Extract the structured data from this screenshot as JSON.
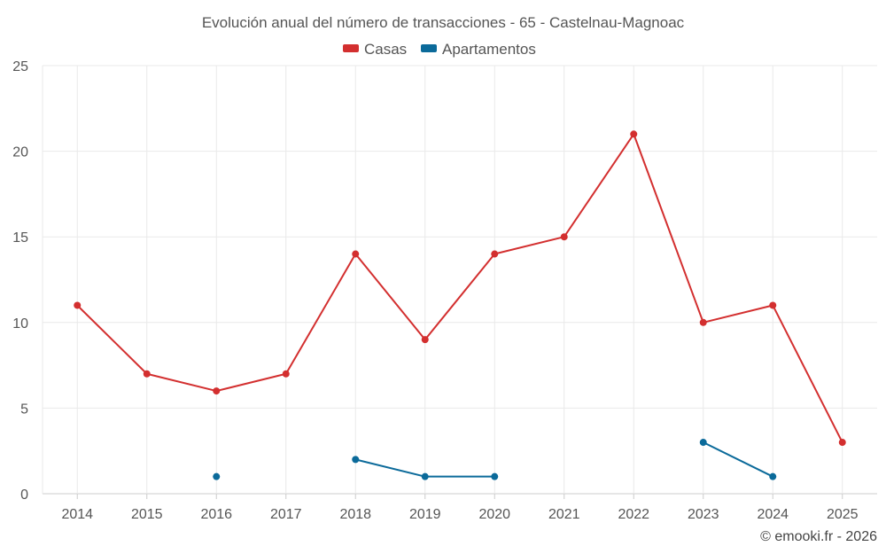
{
  "chart_data": {
    "type": "line",
    "title": "Evolución anual del número de transacciones - 65 - Castelnau-Magnoac",
    "categories": [
      "2014",
      "2015",
      "2016",
      "2017",
      "2018",
      "2019",
      "2020",
      "2021",
      "2022",
      "2023",
      "2024",
      "2025"
    ],
    "ylim": [
      0,
      25
    ],
    "yticks": [
      0,
      5,
      10,
      15,
      20,
      25
    ],
    "grid": true,
    "legend": "top-center",
    "series": [
      {
        "name": "Casas",
        "color": "#d32f2f",
        "values": [
          11,
          7,
          6,
          7,
          14,
          9,
          14,
          15,
          21,
          10,
          11,
          3
        ]
      },
      {
        "name": "Apartamentos",
        "color": "#0b6a9a",
        "values": [
          null,
          null,
          1,
          null,
          2,
          1,
          1,
          null,
          null,
          3,
          1,
          null
        ]
      }
    ],
    "credit": "© emooki.fr - 2026"
  }
}
